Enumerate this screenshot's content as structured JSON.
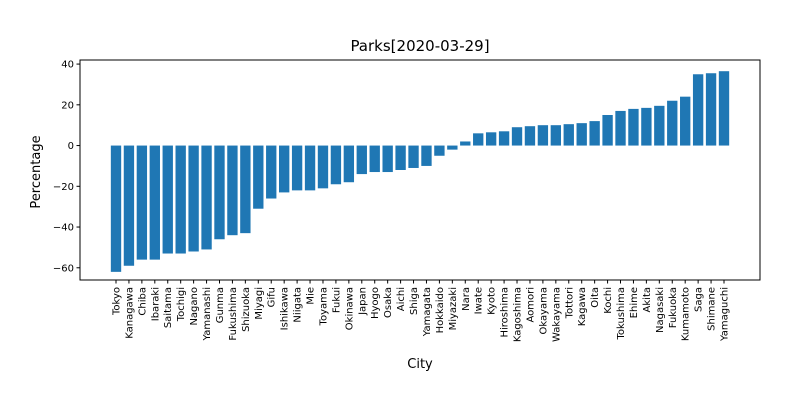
{
  "chart_data": {
    "type": "bar",
    "title": "Parks[2020-03-29]",
    "xlabel": "City",
    "ylabel": "Percentage",
    "ylim": [
      -66,
      42
    ],
    "yticks": [
      -60,
      -40,
      -20,
      0,
      20,
      40
    ],
    "grid": false,
    "bar_color": "#1f77b4",
    "categories": [
      "Tokyo",
      "Kanagawa",
      "Chiba",
      "Ibaraki",
      "Saitama",
      "Tochigi",
      "Nagano",
      "Yamanashi",
      "Gunma",
      "Fukushima",
      "Shizuoka",
      "Miyagi",
      "Gifu",
      "Ishikawa",
      "Niigata",
      "Mie",
      "Toyama",
      "Fukui",
      "Okinawa",
      "Japan",
      "Hyogo",
      "Osaka",
      "Aichi",
      "Shiga",
      "Yamagata",
      "Hokkaido",
      "Miyazaki",
      "Nara",
      "Iwate",
      "Kyoto",
      "Hiroshima",
      "Kagoshima",
      "Aomori",
      "Okayama",
      "Wakayama",
      "Tottori",
      "Kagawa",
      "Oita",
      "Kochi",
      "Tokushima",
      "Ehime",
      "Akita",
      "Nagasaki",
      "Fukuoka",
      "Kumamoto",
      "Saga",
      "Shimane",
      "Yamaguchi"
    ],
    "values": [
      -62,
      -59,
      -56,
      -56,
      -53,
      -53,
      -52,
      -51,
      -46,
      -44,
      -43,
      -31,
      -26,
      -23,
      -22,
      -22,
      -21,
      -19,
      -18,
      -14,
      -13,
      -13,
      -12,
      -11,
      -10,
      -5,
      -2,
      2,
      6,
      6.5,
      7,
      9,
      9.5,
      10,
      10,
      10.5,
      11,
      12,
      15,
      17,
      18,
      18.5,
      19.5,
      22,
      24,
      35,
      35.5,
      36.5
    ]
  }
}
